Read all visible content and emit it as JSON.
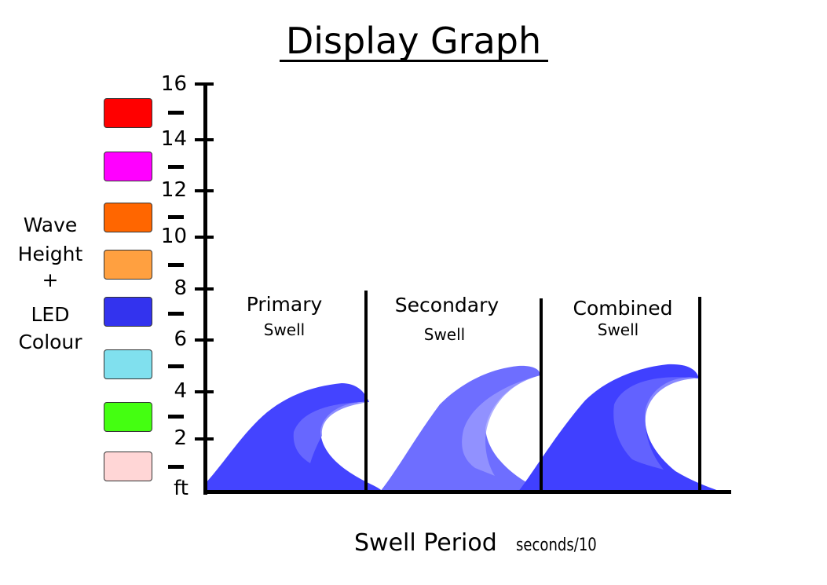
{
  "title": "Display Graph",
  "side_label": [
    "Wave",
    "Height",
    "+",
    "LED",
    "Colour"
  ],
  "legend_swatches": [
    {
      "color": "#ff0000"
    },
    {
      "color": "#ff00ff"
    },
    {
      "color": "#ff6600"
    },
    {
      "color": "#ffa040"
    },
    {
      "color": "#3333ee"
    },
    {
      "color": "#80e0ee"
    },
    {
      "color": "#44ff11"
    },
    {
      "color": "#ffd6d6"
    }
  ],
  "y_axis": {
    "tick_labels": [
      "16",
      "14",
      "12",
      "10",
      "8",
      "6",
      "4",
      "2"
    ],
    "unit": "ft"
  },
  "panels": [
    {
      "title": "Primary",
      "subtitle": "Swell",
      "wave_color": "#4444ff",
      "curl_color": "#7070ff"
    },
    {
      "title": "Secondary",
      "subtitle": "Swell",
      "wave_color": "#6e6eff",
      "curl_color": "#9a9aff"
    },
    {
      "title": "Combined",
      "subtitle": "Swell",
      "wave_color": "#4040ff",
      "curl_color": "#6a6aff"
    }
  ],
  "x_axis": {
    "label": "Swell Period",
    "unit": "seconds/10"
  }
}
